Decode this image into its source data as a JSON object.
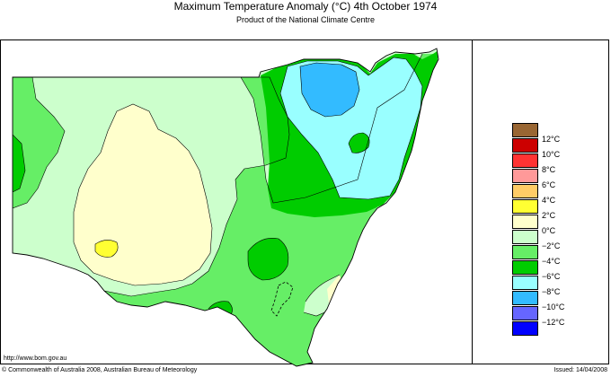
{
  "header": {
    "title": "Maximum Temperature Anomaly (°C)  4th October 1974",
    "subtitle": "Product of the National Climate Centre"
  },
  "footer": {
    "url": "http://www.bom.gov.au",
    "copyright": "© Commonwealth of Australia 2008, Australian Bureau of Meteorology",
    "issued": "Issued: 14/04/2008"
  },
  "legend": {
    "items": [
      {
        "label": "",
        "color": "#996633"
      },
      {
        "label": "12°C",
        "color": "#cc0000"
      },
      {
        "label": "10°C",
        "color": "#ff3333"
      },
      {
        "label": "8°C",
        "color": "#ff9999"
      },
      {
        "label": "6°C",
        "color": "#ffcc66"
      },
      {
        "label": "4°C",
        "color": "#ffff33"
      },
      {
        "label": "2°C",
        "color": "#ffffcc"
      },
      {
        "label": "0°C",
        "color": "#ccffcc"
      },
      {
        "label": "−2°C",
        "color": "#66ee66"
      },
      {
        "label": "−4°C",
        "color": "#00cc00"
      },
      {
        "label": "−6°C",
        "color": "#99ffff"
      },
      {
        "label": "−8°C",
        "color": "#33bbff"
      },
      {
        "label": "−10°C",
        "color": "#6666ff"
      },
      {
        "label": "−12°C",
        "color": "#0000ff"
      }
    ]
  },
  "map": {
    "region": "New South Wales",
    "colors": {
      "anom_plus2_to_plus4": "#ffff33",
      "anom_0_to_plus2": "#ffffcc",
      "anom_minus2_to_0": "#ccffcc",
      "anom_minus4_to_minus2": "#66ee66",
      "anom_minus6_to_minus4": "#00cc00",
      "anom_minus8_to_minus6": "#99ffff",
      "anom_minus10_to_minus8": "#33bbff"
    }
  }
}
